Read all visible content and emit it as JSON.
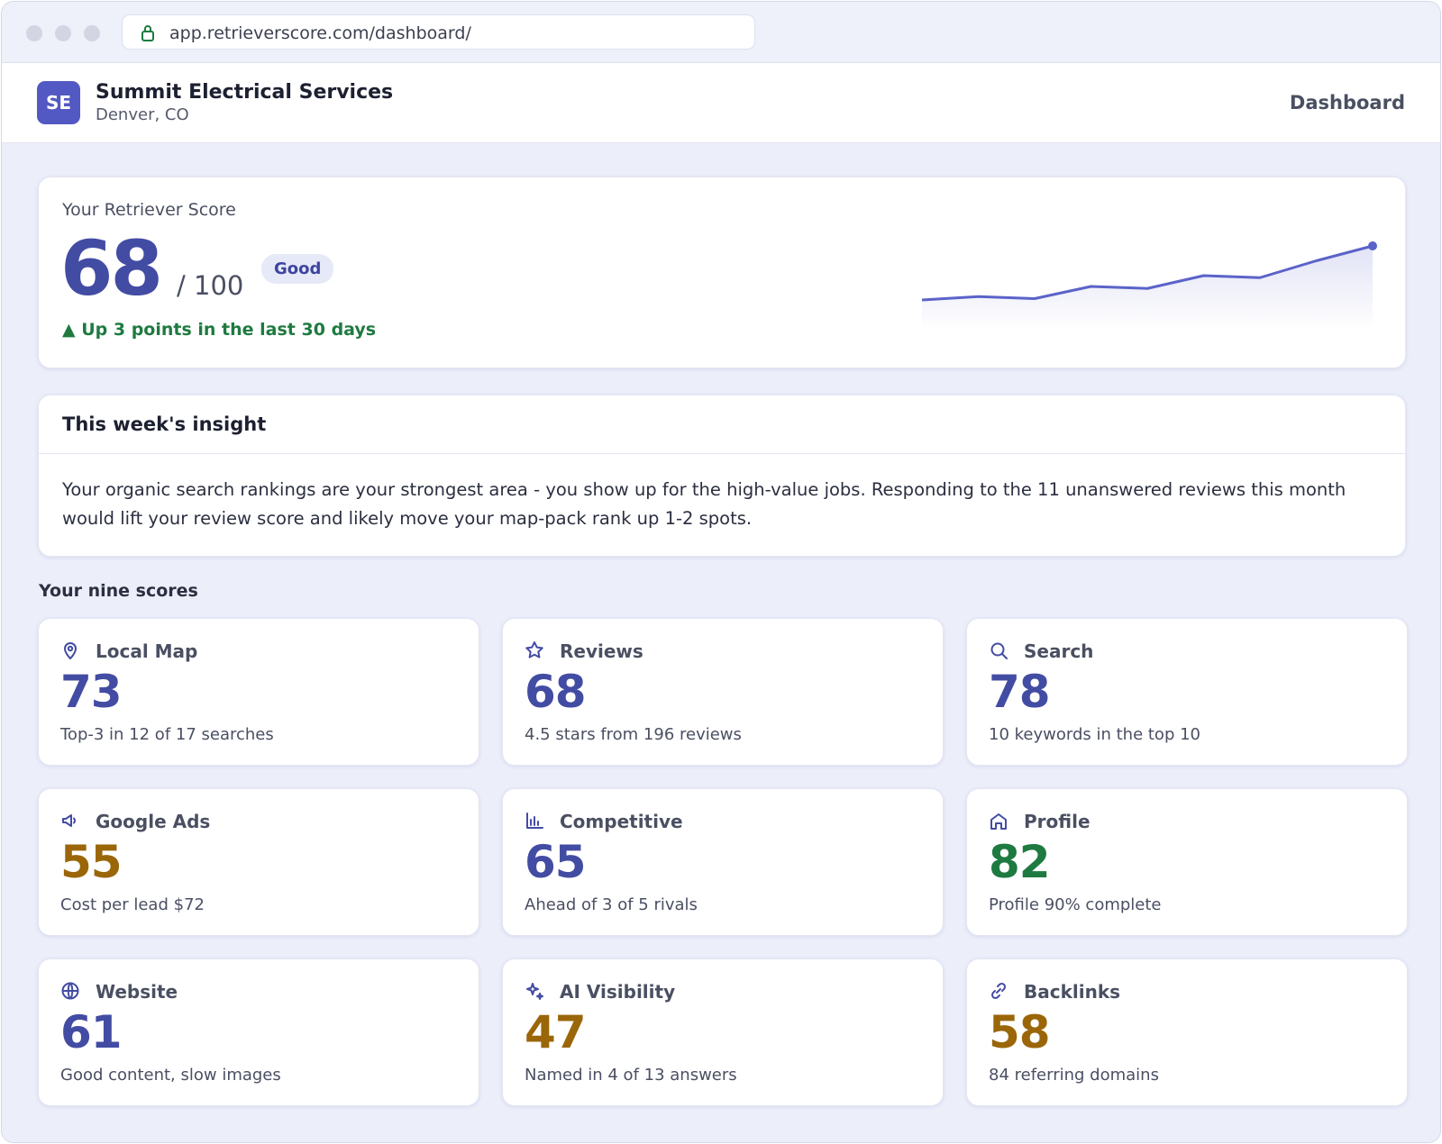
{
  "browser": {
    "url": "app.retrieverscore.com/dashboard/"
  },
  "header": {
    "initials": "SE",
    "business": "Summit Electrical Services",
    "location": "Denver, CO",
    "nav": "Dashboard"
  },
  "score_card": {
    "label": "Your Retriever Score",
    "score": "68",
    "max": "/ 100",
    "rating": "Good",
    "change": "▲ Up 3 points in the last 30 days",
    "sparkline": {
      "type": "line",
      "color": "#5b63c9",
      "values": [
        60,
        60.5,
        60.2,
        62,
        61.7,
        63.6,
        63.3,
        65.8,
        68
      ]
    }
  },
  "insight": {
    "title": "This week's insight",
    "body": "Your organic search rankings are your strongest area - you show up for the high-value jobs. Responding to the 11 unanswered reviews this month would lift your review score and likely move your map-pack rank up 1-2 spots."
  },
  "scores_heading": "Your nine scores",
  "scores": [
    {
      "name": "Local Map",
      "value": "73",
      "detail": "Top-3 in 12 of 17 searches",
      "color": "#434ca3"
    },
    {
      "name": "Reviews",
      "value": "68",
      "detail": "4.5 stars from 196 reviews",
      "color": "#434ca3"
    },
    {
      "name": "Search",
      "value": "78",
      "detail": "10 keywords in the top 10",
      "color": "#434ca3"
    },
    {
      "name": "Google Ads",
      "value": "55",
      "detail": "Cost per lead $72",
      "color": "#9a6608"
    },
    {
      "name": "Competitive",
      "value": "65",
      "detail": "Ahead of 3 of 5 rivals",
      "color": "#434ca3"
    },
    {
      "name": "Profile",
      "value": "82",
      "detail": "Profile 90% complete",
      "color": "#1e7a40"
    },
    {
      "name": "Website",
      "value": "61",
      "detail": "Good content, slow images",
      "color": "#434ca3"
    },
    {
      "name": "AI Visibility",
      "value": "47",
      "detail": "Named in 4 of 13 answers",
      "color": "#9a6608"
    },
    {
      "name": "Backlinks",
      "value": "58",
      "detail": "84 referring domains",
      "color": "#9a6608"
    }
  ]
}
